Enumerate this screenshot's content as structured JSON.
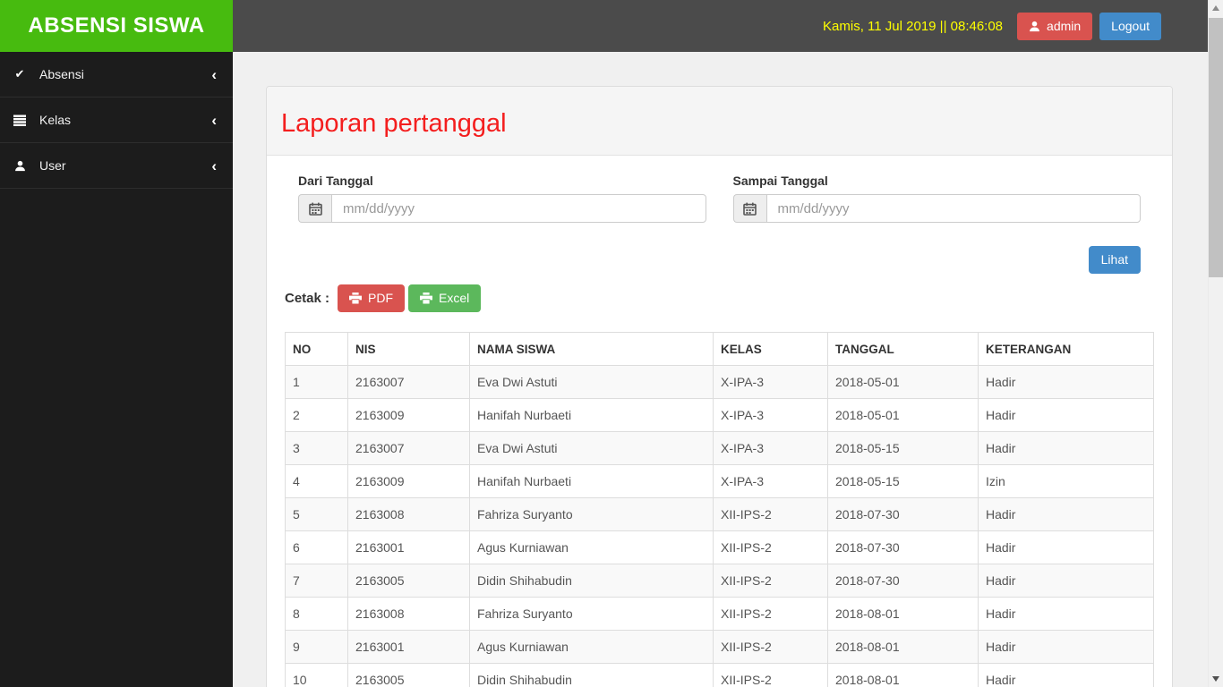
{
  "app": {
    "brand": "ABSENSI SISWA"
  },
  "navbar": {
    "datetime": "Kamis, 11 Jul 2019 || 08:46:08",
    "admin_label": "admin",
    "logout_label": "Logout"
  },
  "sidebar": {
    "items": [
      {
        "label": "Absensi",
        "icon": "check-icon"
      },
      {
        "label": "Kelas",
        "icon": "list-icon"
      },
      {
        "label": "User",
        "icon": "user-icon"
      }
    ]
  },
  "panel": {
    "title": "Laporan pertanggal",
    "form": {
      "from_label": "Dari Tanggal",
      "to_label": "Sampai Tanggal",
      "date_placeholder": "mm/dd/yyyy",
      "from_value": "",
      "to_value": "",
      "submit_label": "Lihat"
    },
    "print": {
      "label": "Cetak :",
      "pdf_label": "PDF",
      "excel_label": "Excel"
    }
  },
  "table": {
    "headers": [
      "NO",
      "NIS",
      "NAMA SISWA",
      "KELAS",
      "TANGGAL",
      "KETERANGAN"
    ],
    "rows": [
      [
        "1",
        "2163007",
        "Eva Dwi Astuti",
        "X-IPA-3",
        "2018-05-01",
        "Hadir"
      ],
      [
        "2",
        "2163009",
        "Hanifah Nurbaeti",
        "X-IPA-3",
        "2018-05-01",
        "Hadir"
      ],
      [
        "3",
        "2163007",
        "Eva Dwi Astuti",
        "X-IPA-3",
        "2018-05-15",
        "Hadir"
      ],
      [
        "4",
        "2163009",
        "Hanifah Nurbaeti",
        "X-IPA-3",
        "2018-05-15",
        "Izin"
      ],
      [
        "5",
        "2163008",
        "Fahriza Suryanto",
        "XII-IPS-2",
        "2018-07-30",
        "Hadir"
      ],
      [
        "6",
        "2163001",
        "Agus Kurniawan",
        "XII-IPS-2",
        "2018-07-30",
        "Hadir"
      ],
      [
        "7",
        "2163005",
        "Didin Shihabudin",
        "XII-IPS-2",
        "2018-07-30",
        "Hadir"
      ],
      [
        "8",
        "2163008",
        "Fahriza Suryanto",
        "XII-IPS-2",
        "2018-08-01",
        "Hadir"
      ],
      [
        "9",
        "2163001",
        "Agus Kurniawan",
        "XII-IPS-2",
        "2018-08-01",
        "Hadir"
      ],
      [
        "10",
        "2163005",
        "Didin Shihabudin",
        "XII-IPS-2",
        "2018-08-01",
        "Hadir"
      ]
    ]
  },
  "colors": {
    "brand_green": "#47bb0f",
    "navbar_gray": "#4b4b4b",
    "sidebar_black": "#1c1c1c",
    "datetime_yellow": "#ffff00",
    "title_red": "#f41e1e",
    "primary_blue": "#428bca",
    "danger_red": "#d9534f",
    "success_green": "#5cb85c"
  }
}
